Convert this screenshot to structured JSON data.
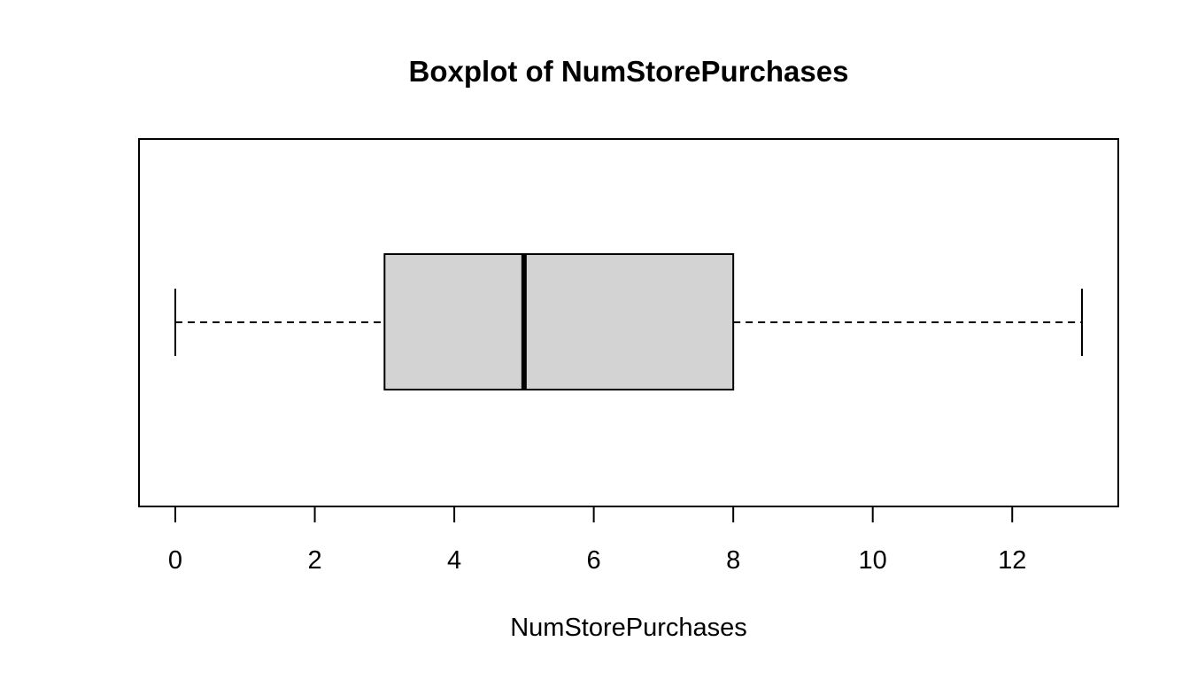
{
  "chart_data": {
    "type": "boxplot",
    "orientation": "horizontal",
    "title": "Boxplot of NumStorePurchases",
    "xlabel": "NumStorePurchases",
    "ylabel": "",
    "xlim": [
      0,
      13
    ],
    "ticks": [
      0,
      2,
      4,
      6,
      8,
      10,
      12
    ],
    "tick_labels": [
      "0",
      "2",
      "4",
      "6",
      "8",
      "10",
      "12"
    ],
    "box": {
      "min": 0,
      "q1": 3,
      "median": 5,
      "q3": 8,
      "max": 13
    },
    "box_fill": "#d3d3d3",
    "line_color": "#000000",
    "grid": false
  }
}
